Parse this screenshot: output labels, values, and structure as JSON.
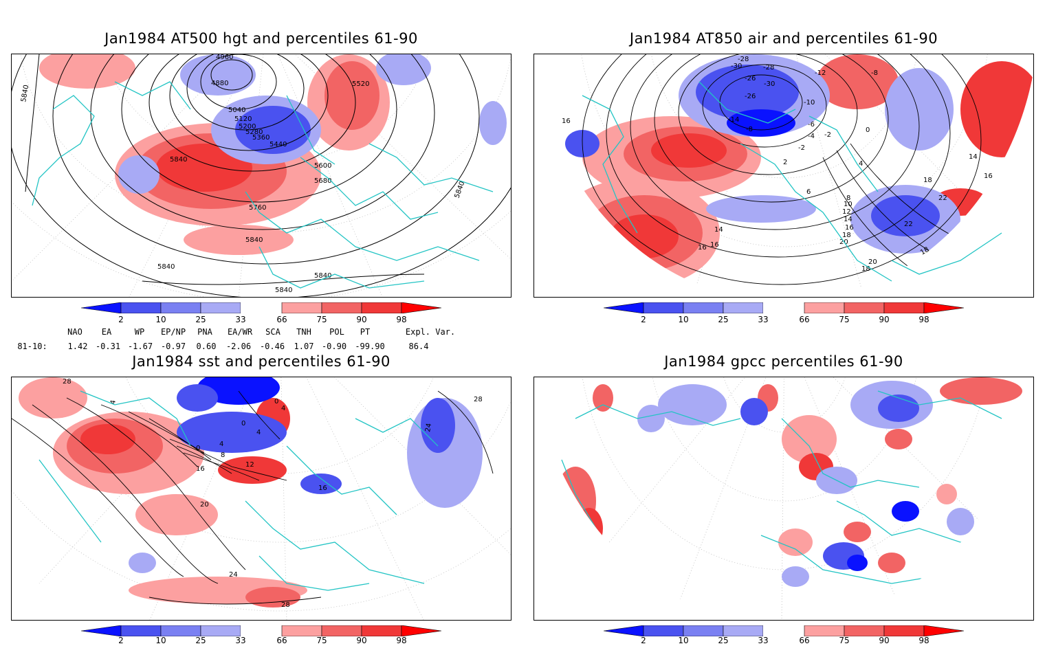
{
  "colors": {
    "blue_dark": "#0a12ff",
    "blue_mid": "#4a52f0",
    "blue_light": "#a8aaf5",
    "red_light": "#fca0a0",
    "red_mid": "#f26464",
    "red_dark": "#f03838",
    "red_max": "#ff0000",
    "coast": "#22c4c4",
    "contour": "#000000"
  },
  "colorbar": {
    "ticks": [
      "2",
      "10",
      "25",
      "33",
      "66",
      "75",
      "90",
      "98"
    ]
  },
  "panels": [
    {
      "id": "hgt",
      "title": "Jan1984 AT500 hgt and percentiles 61-90",
      "contour_labels": [
        "4960",
        "4880",
        "5040",
        "5120",
        "5200",
        "5280",
        "5360",
        "5440",
        "5520",
        "5600",
        "5680",
        "5760",
        "5840",
        "5840",
        "5840",
        "5840",
        "5840",
        "5840",
        "5840"
      ]
    },
    {
      "id": "air",
      "title": "Jan1984 AT850 air and percentiles 61-90",
      "contour_labels": [
        "-28",
        "-30",
        "-26",
        "-30",
        "-28",
        "-26",
        "-14",
        "-8",
        "-12",
        "-8",
        "-10",
        "-6",
        "-4",
        "-2",
        "0",
        "-2",
        "2",
        "4",
        "6",
        "8",
        "10",
        "12",
        "14",
        "16",
        "18",
        "20",
        "22",
        "22",
        "14",
        "16",
        "18",
        "16",
        "16",
        "16",
        "14",
        "18",
        "20",
        "18"
      ]
    },
    {
      "id": "sst",
      "title": "Jan1984 sst and percentiles 61-90",
      "contour_labels": [
        "28",
        "0",
        "4",
        "0",
        "4",
        "8",
        "12",
        "16",
        "16",
        "20",
        "24",
        "28",
        "24",
        "28",
        "4",
        "0",
        "4"
      ]
    },
    {
      "id": "gpcc",
      "title": "Jan1984 gpcc percentiles 61-90",
      "contour_labels": []
    }
  ],
  "indices": {
    "headers": [
      "NAO",
      "EA",
      "WP",
      "EP/NP",
      "PNA",
      "EA/WR",
      "SCA",
      "TNH",
      "POL",
      "PT",
      "Expl. Var."
    ],
    "row_label": "81-10:",
    "values": [
      "1.42",
      "-0.31",
      "-1.67",
      "-0.97",
      "0.60",
      "-2.06",
      "-0.46",
      "1.07",
      "-0.90",
      "-99.90",
      "86.4"
    ]
  }
}
